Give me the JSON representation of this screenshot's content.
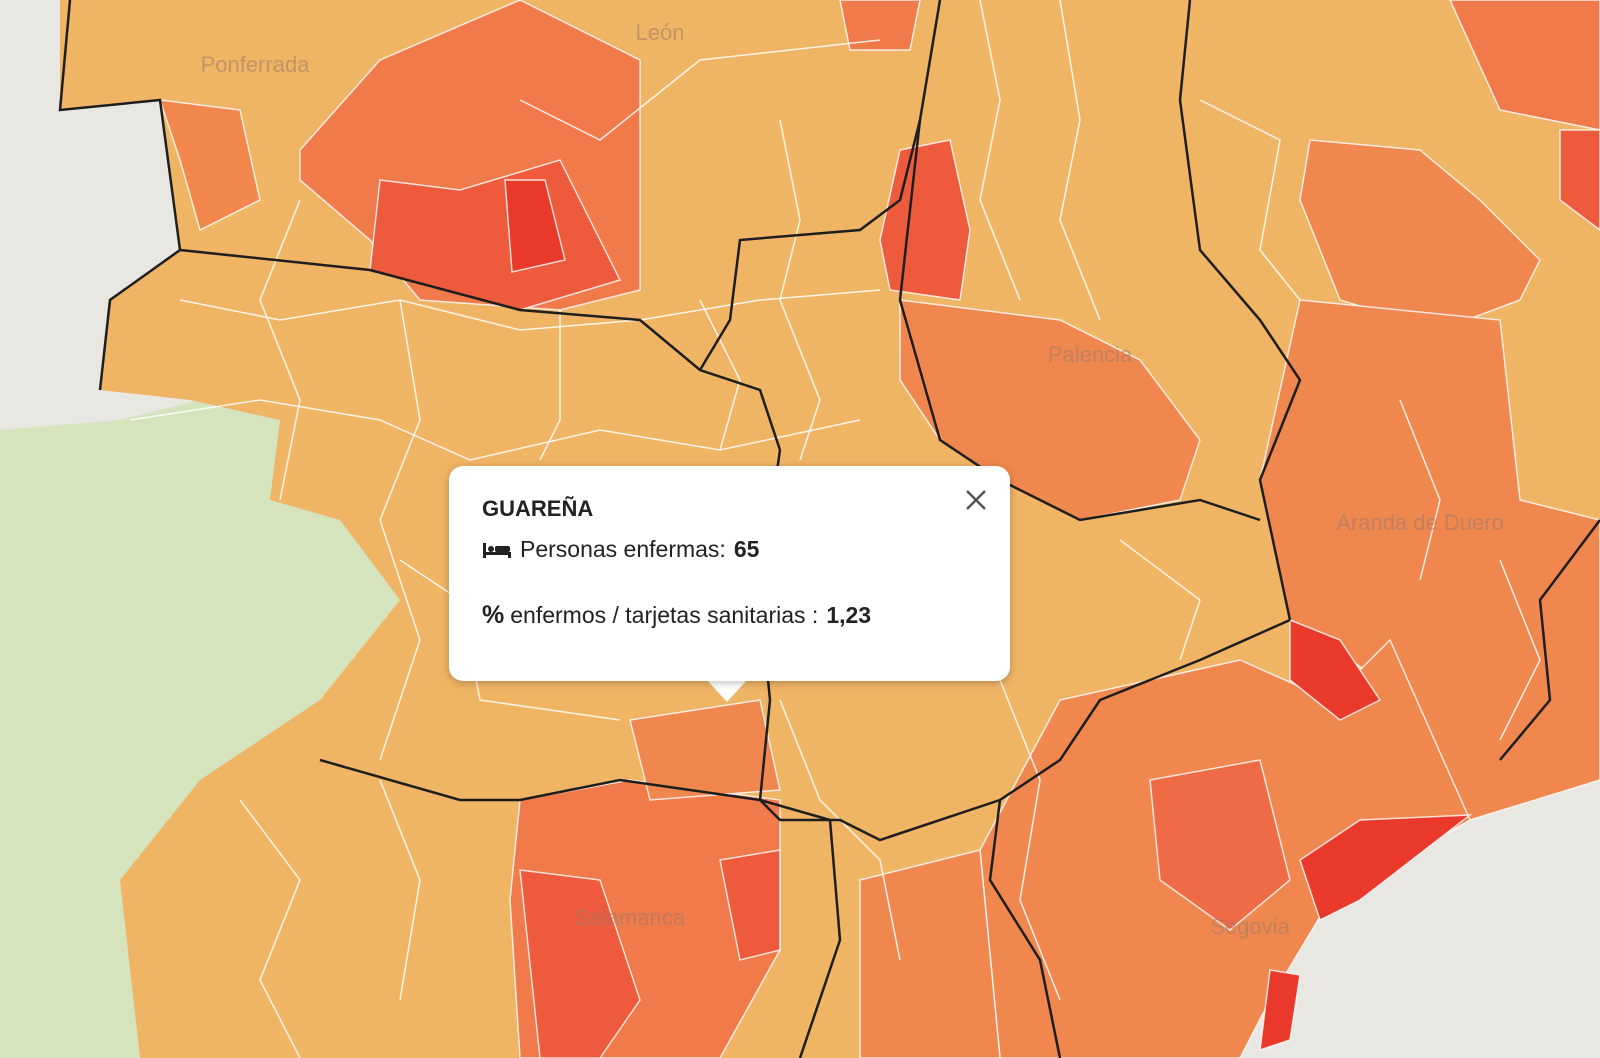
{
  "map_labels": [
    "León",
    "Ponferrada",
    "Palencia",
    "Aranda de Duero",
    "Salamanca",
    "Segovia"
  ],
  "popup": {
    "title": "GUAREÑA",
    "rows": [
      {
        "label": "Personas enfermas:",
        "value": "65"
      },
      {
        "symbol": "%",
        "label": "enfermos / tarjetas sanitarias :",
        "value": "1,23"
      }
    ]
  }
}
